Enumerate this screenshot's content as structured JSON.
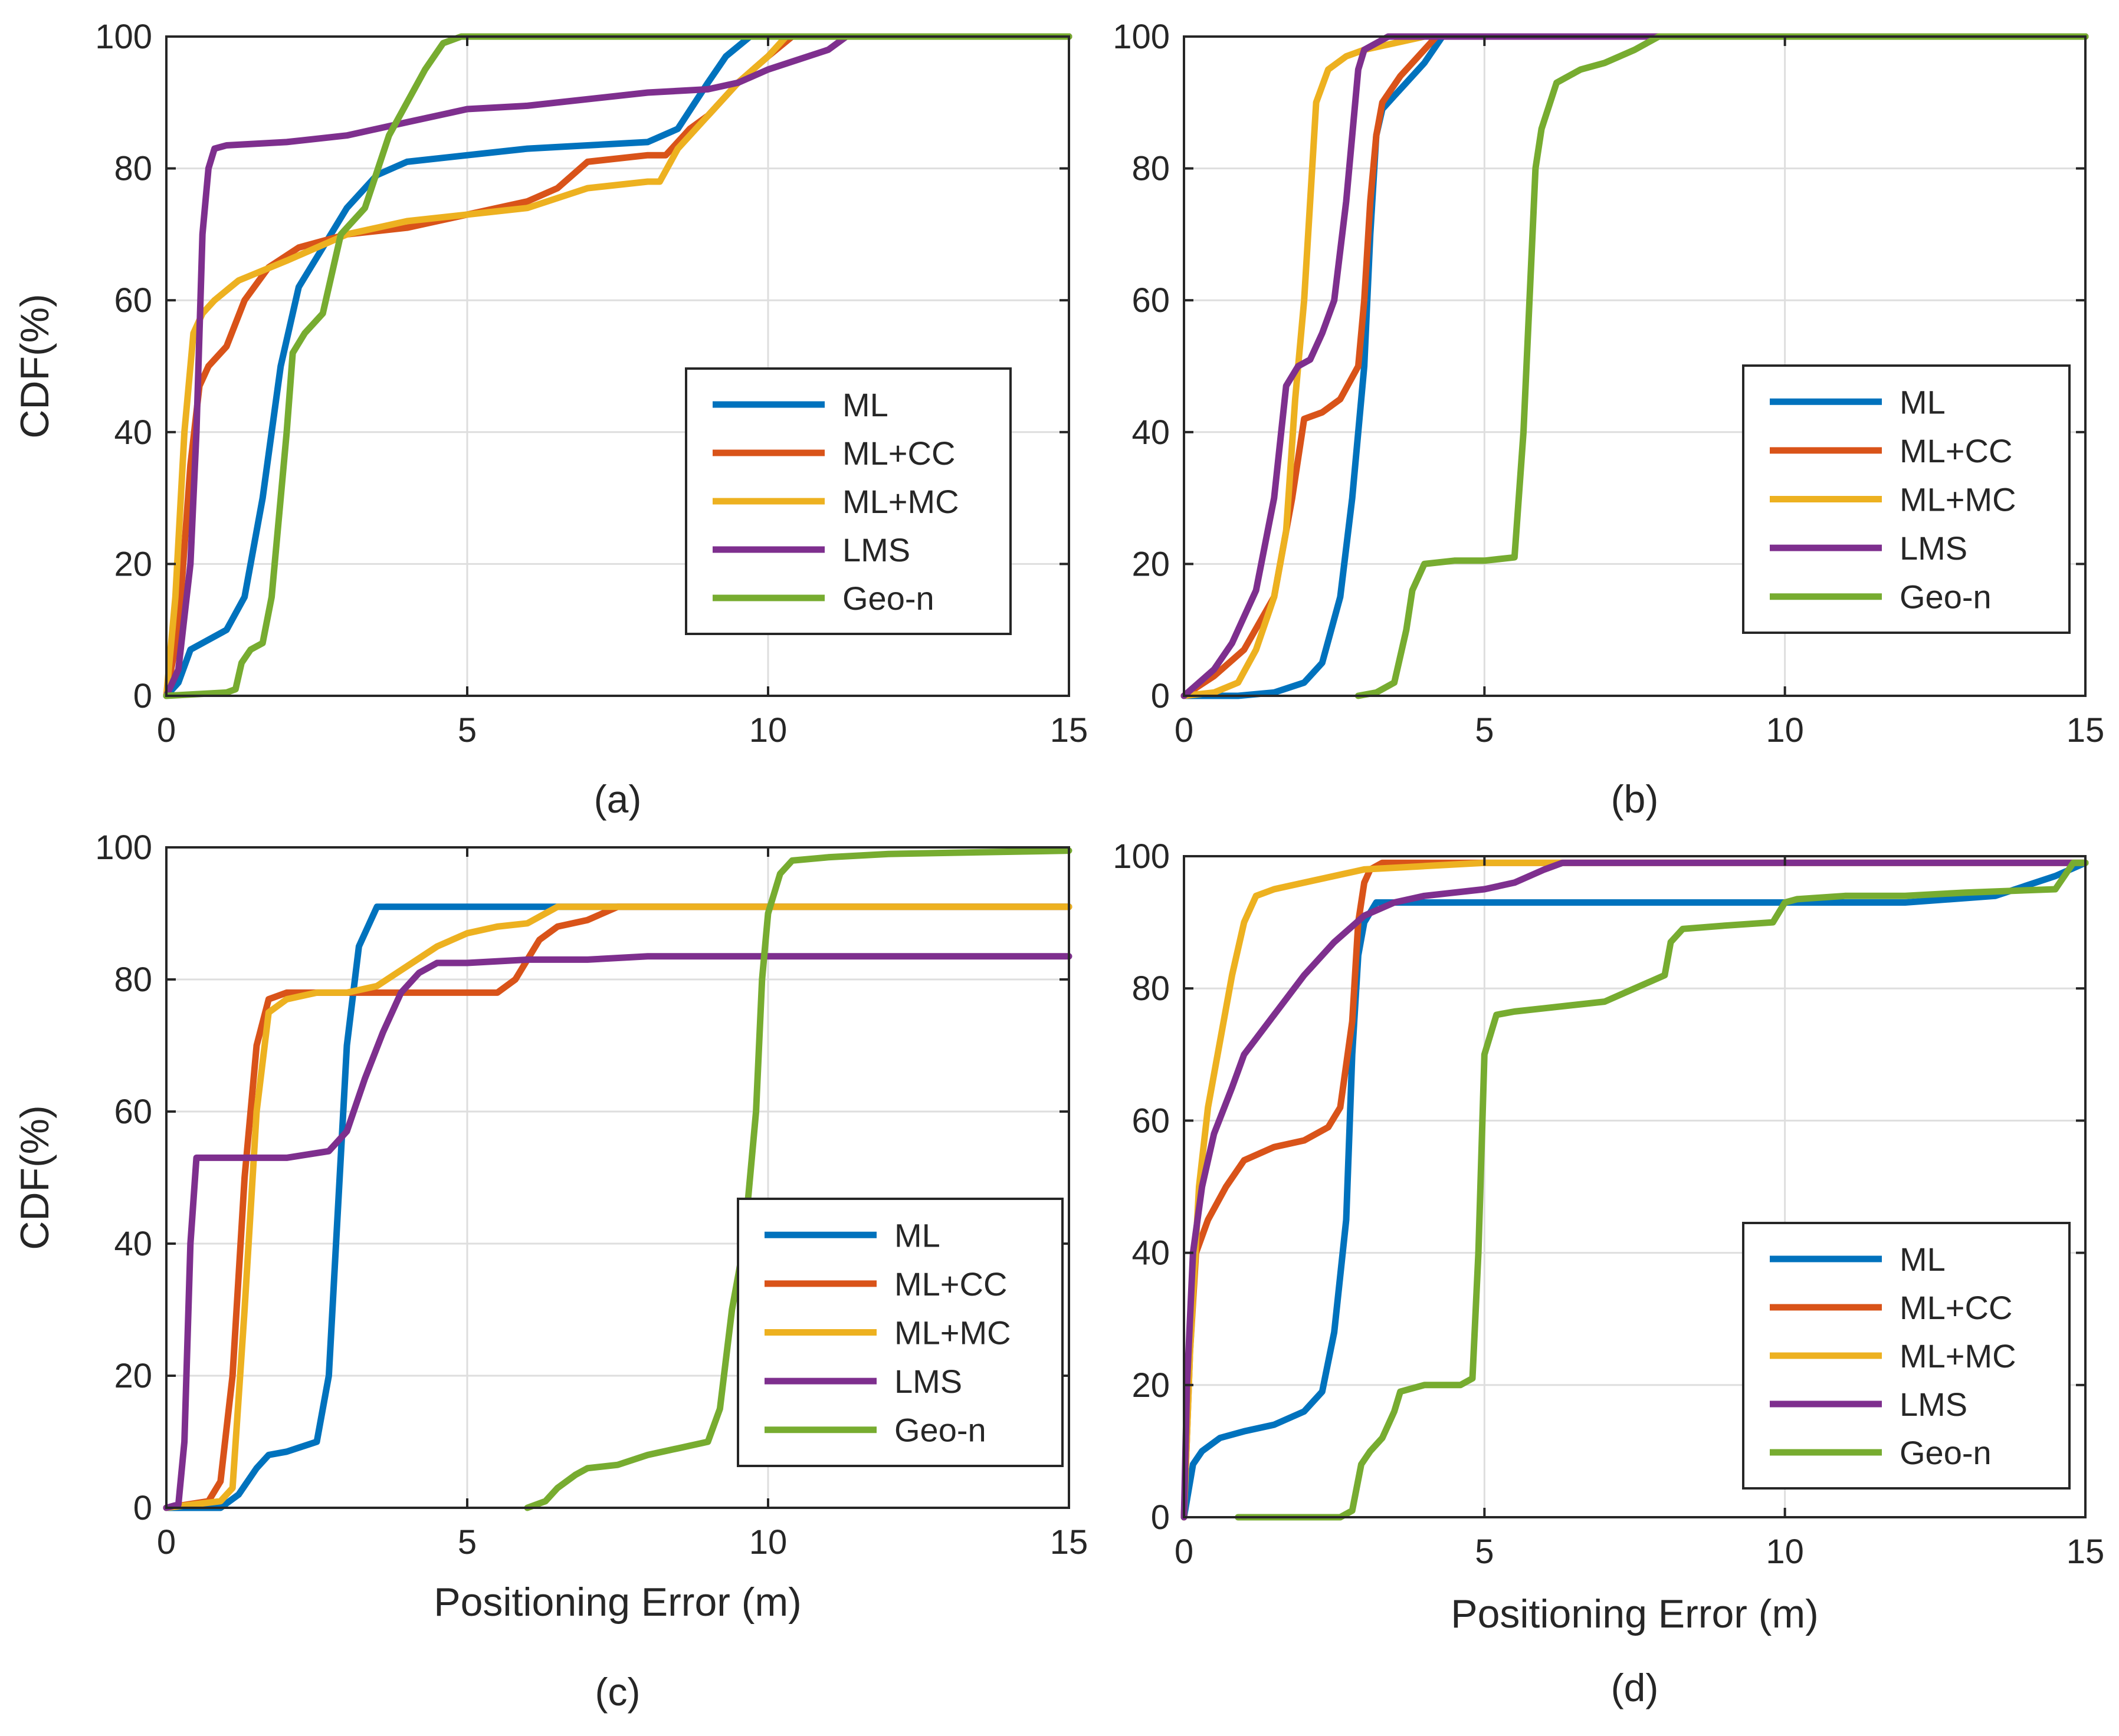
{
  "colors": {
    "ML": "#0072BD",
    "ML+CC": "#D95319",
    "ML+MC": "#EDB120",
    "LMS": "#7E2F8E",
    "Geo-n": "#77AC30"
  },
  "chart_data": [
    {
      "type": "line",
      "id": "a",
      "caption": "(a)",
      "xlabel": "",
      "ylabel": "CDF(%)",
      "xlim": [
        0,
        15
      ],
      "ylim": [
        0,
        100
      ],
      "xticks": [
        0,
        5,
        10,
        15
      ],
      "yticks": [
        0,
        20,
        40,
        60,
        80,
        100
      ],
      "grid": true,
      "legend_position": "lower-right",
      "series": [
        {
          "name": "ML",
          "x": [
            0,
            0.2,
            0.4,
            0.6,
            1.0,
            1.3,
            1.6,
            1.9,
            2.2,
            2.6,
            3.0,
            3.5,
            4.0,
            5.0,
            6.0,
            7.0,
            8.0,
            8.5,
            9.0,
            9.3,
            9.7,
            10.0,
            15
          ],
          "y": [
            0,
            2,
            7,
            8,
            10,
            15,
            30,
            50,
            62,
            68,
            74,
            79,
            81,
            82,
            83,
            83.5,
            84,
            86,
            93,
            97,
            100,
            100,
            100
          ]
        },
        {
          "name": "ML+CC",
          "x": [
            0,
            0.2,
            0.4,
            0.55,
            0.7,
            1.0,
            1.3,
            1.7,
            2.2,
            3.0,
            4.0,
            5.0,
            6.0,
            6.5,
            7.0,
            8.0,
            8.3,
            8.7,
            9.0,
            9.5,
            10.0,
            10.4,
            15
          ],
          "y": [
            0,
            10,
            35,
            47,
            50,
            53,
            60,
            65,
            68,
            70,
            71,
            73,
            75,
            77,
            81,
            82,
            82,
            86,
            88,
            93,
            97,
            100,
            100
          ]
        },
        {
          "name": "ML+MC",
          "x": [
            0,
            0.15,
            0.3,
            0.45,
            0.6,
            0.8,
            1.2,
            2.0,
            3.0,
            4.0,
            5.0,
            6.0,
            7.0,
            8.0,
            8.2,
            8.5,
            9.0,
            9.5,
            10.0,
            10.3,
            15
          ],
          "y": [
            0,
            15,
            40,
            55,
            58,
            60,
            63,
            66,
            70,
            72,
            73,
            74,
            77,
            78,
            78,
            83,
            88,
            93,
            97,
            100,
            100
          ]
        },
        {
          "name": "LMS",
          "x": [
            0,
            0.2,
            0.4,
            0.5,
            0.6,
            0.7,
            0.8,
            1.0,
            2.0,
            3.0,
            3.5,
            4.0,
            5.0,
            6.0,
            7.0,
            8.0,
            9.0,
            9.5,
            10.0,
            10.5,
            11.0,
            11.3,
            15
          ],
          "y": [
            0,
            4,
            20,
            40,
            70,
            80,
            83,
            83.5,
            84,
            85,
            86,
            87,
            89,
            89.5,
            90.5,
            91.5,
            92,
            93,
            95,
            96.5,
            98,
            100,
            100
          ]
        },
        {
          "name": "Geo-n",
          "x": [
            0,
            1.0,
            1.15,
            1.25,
            1.4,
            1.6,
            1.75,
            1.85,
            2.0,
            2.1,
            2.3,
            2.6,
            2.9,
            3.3,
            3.7,
            4.0,
            4.3,
            4.6,
            4.9,
            15
          ],
          "y": [
            0,
            0.5,
            1,
            5,
            7,
            8,
            15,
            25,
            40,
            52,
            55,
            58,
            70,
            74,
            85,
            90,
            95,
            99,
            100,
            100
          ]
        }
      ]
    },
    {
      "type": "line",
      "id": "b",
      "caption": "(b)",
      "xlabel": "",
      "ylabel": "",
      "xlim": [
        0,
        15
      ],
      "ylim": [
        0,
        100
      ],
      "xticks": [
        0,
        5,
        10,
        15
      ],
      "yticks": [
        0,
        20,
        40,
        60,
        80,
        100
      ],
      "grid": true,
      "legend_position": "lower-right",
      "series": [
        {
          "name": "ML",
          "x": [
            0,
            0.9,
            1.5,
            2.0,
            2.3,
            2.6,
            2.8,
            3.0,
            3.1,
            3.2,
            3.3,
            3.5,
            3.7,
            4.0,
            4.3,
            15
          ],
          "y": [
            0,
            0,
            0.5,
            2,
            5,
            15,
            30,
            50,
            70,
            85,
            89,
            91,
            93,
            96,
            100,
            100
          ]
        },
        {
          "name": "ML+CC",
          "x": [
            0,
            0.5,
            1.0,
            1.5,
            1.8,
            2.0,
            2.3,
            2.6,
            2.9,
            3.0,
            3.1,
            3.2,
            3.3,
            3.6,
            3.9,
            4.2,
            15
          ],
          "y": [
            0,
            3,
            7,
            15,
            30,
            42,
            43,
            45,
            50,
            60,
            75,
            85,
            90,
            94,
            97,
            100,
            100
          ]
        },
        {
          "name": "ML+MC",
          "x": [
            0,
            0.5,
            0.9,
            1.2,
            1.5,
            1.7,
            1.85,
            2.0,
            2.1,
            2.2,
            2.4,
            2.7,
            3.0,
            3.5,
            4.0,
            15
          ],
          "y": [
            0,
            0.5,
            2,
            7,
            15,
            25,
            45,
            60,
            75,
            90,
            95,
            97,
            98,
            99,
            100,
            100
          ]
        },
        {
          "name": "LMS",
          "x": [
            0,
            0.5,
            0.8,
            1.2,
            1.5,
            1.7,
            1.9,
            2.1,
            2.3,
            2.5,
            2.7,
            2.9,
            3.0,
            3.2,
            3.4,
            15
          ],
          "y": [
            0,
            4,
            8,
            16,
            30,
            47,
            50,
            51,
            55,
            60,
            75,
            95,
            98,
            99,
            100,
            100
          ]
        },
        {
          "name": "Geo-n",
          "x": [
            2.9,
            3.2,
            3.5,
            3.7,
            3.8,
            4.0,
            4.5,
            5.0,
            5.5,
            5.65,
            5.75,
            5.85,
            5.95,
            6.2,
            6.6,
            7.0,
            7.5,
            7.9,
            15
          ],
          "y": [
            0,
            0.5,
            2,
            10,
            16,
            20,
            20.5,
            20.5,
            21,
            40,
            60,
            80,
            86,
            93,
            95,
            96,
            98,
            100,
            100
          ]
        }
      ]
    },
    {
      "type": "line",
      "id": "c",
      "caption": "(c)",
      "xlabel": "Positioning Error (m)",
      "ylabel": "CDF(%)",
      "xlim": [
        0,
        15
      ],
      "ylim": [
        0,
        100
      ],
      "xticks": [
        0,
        5,
        10,
        15
      ],
      "yticks": [
        0,
        20,
        40,
        60,
        80,
        100
      ],
      "grid": true,
      "legend_position": "lower-right",
      "series": [
        {
          "name": "ML",
          "x": [
            0,
            0.9,
            1.2,
            1.5,
            1.7,
            2.0,
            2.5,
            2.7,
            2.85,
            3.0,
            3.2,
            3.5,
            4.0,
            5.0,
            15
          ],
          "y": [
            0,
            0,
            2,
            6,
            8,
            8.5,
            10,
            20,
            45,
            70,
            85,
            91,
            91,
            91,
            91
          ]
        },
        {
          "name": "ML+CC",
          "x": [
            0,
            0.7,
            0.9,
            1.1,
            1.3,
            1.5,
            1.7,
            2.0,
            2.5,
            3.0,
            4.0,
            5.0,
            5.5,
            5.8,
            6.2,
            6.5,
            7.0,
            7.5,
            8.0,
            15
          ],
          "y": [
            0,
            1,
            4,
            20,
            50,
            70,
            77,
            78,
            78,
            78,
            78,
            78,
            78,
            80,
            86,
            88,
            89,
            91,
            91,
            91
          ]
        },
        {
          "name": "ML+MC",
          "x": [
            0,
            0.9,
            1.1,
            1.3,
            1.5,
            1.7,
            2.0,
            2.5,
            3.0,
            3.5,
            4.0,
            4.5,
            5.0,
            5.5,
            6.0,
            6.3,
            6.5,
            7.0,
            8.0,
            15
          ],
          "y": [
            0,
            1,
            3,
            30,
            60,
            75,
            77,
            78,
            78,
            79,
            82,
            85,
            87,
            88,
            88.5,
            90,
            91,
            91,
            91,
            91
          ]
        },
        {
          "name": "LMS",
          "x": [
            0,
            0.2,
            0.3,
            0.4,
            0.5,
            0.7,
            1.0,
            2.0,
            2.7,
            3.0,
            3.3,
            3.6,
            3.9,
            4.2,
            4.5,
            5.0,
            6.0,
            7.0,
            8.0,
            9.0,
            10.0,
            15
          ],
          "y": [
            0,
            0.5,
            10,
            40,
            53,
            53,
            53,
            53,
            54,
            57,
            65,
            72,
            78,
            81,
            82.5,
            82.5,
            83,
            83,
            83.5,
            83.5,
            83.5,
            83.5
          ]
        },
        {
          "name": "Geo-n",
          "x": [
            6.0,
            6.3,
            6.5,
            6.8,
            7.0,
            7.5,
            8.0,
            8.5,
            9.0,
            9.2,
            9.4,
            9.6,
            9.8,
            9.9,
            10.0,
            10.2,
            10.4,
            11.0,
            12.0,
            15
          ],
          "y": [
            0,
            1,
            3,
            5,
            6,
            6.5,
            8,
            9,
            10,
            15,
            30,
            40,
            60,
            80,
            90,
            96,
            98,
            98.5,
            99,
            99.5
          ]
        }
      ]
    },
    {
      "type": "line",
      "id": "d",
      "caption": "(d)",
      "xlabel": "Positioning Error (m)",
      "ylabel": "",
      "xlim": [
        0,
        15
      ],
      "ylim": [
        0,
        100
      ],
      "xticks": [
        0,
        5,
        10,
        15
      ],
      "yticks": [
        0,
        20,
        40,
        60,
        80,
        100
      ],
      "grid": true,
      "legend_position": "lower-right",
      "series": [
        {
          "name": "ML",
          "x": [
            0,
            0.15,
            0.3,
            0.6,
            1.0,
            1.5,
            2.0,
            2.3,
            2.5,
            2.7,
            2.8,
            2.9,
            3.0,
            3.2,
            3.5,
            5.0,
            10.0,
            12.0,
            13.5,
            14.5,
            15
          ],
          "y": [
            0,
            8,
            10,
            12,
            13,
            14,
            16,
            19,
            28,
            45,
            70,
            85,
            90,
            93,
            93,
            93,
            93,
            93,
            94,
            97,
            99
          ]
        },
        {
          "name": "ML+CC",
          "x": [
            0,
            0.1,
            0.2,
            0.4,
            0.7,
            1.0,
            1.5,
            2.0,
            2.4,
            2.6,
            2.8,
            2.9,
            3.0,
            3.1,
            3.3,
            15
          ],
          "y": [
            0,
            25,
            40,
            45,
            50,
            54,
            56,
            57,
            59,
            62,
            75,
            90,
            96,
            98,
            99,
            99
          ]
        },
        {
          "name": "ML+MC",
          "x": [
            0,
            0.1,
            0.25,
            0.4,
            0.6,
            0.8,
            1.0,
            1.2,
            1.5,
            2.0,
            3.0,
            4.0,
            5.0,
            5.5,
            15
          ],
          "y": [
            0,
            25,
            50,
            62,
            72,
            82,
            90,
            94,
            95,
            96,
            98,
            98.5,
            99,
            99,
            99
          ]
        },
        {
          "name": "LMS",
          "x": [
            0,
            0.05,
            0.15,
            0.3,
            0.5,
            0.8,
            1.0,
            1.5,
            2.0,
            2.5,
            3.0,
            3.5,
            4.0,
            5.0,
            5.5,
            6.0,
            6.3,
            15
          ],
          "y": [
            0,
            20,
            40,
            50,
            58,
            65,
            70,
            76,
            82,
            87,
            91,
            93,
            94,
            95,
            96,
            98,
            99,
            99
          ]
        },
        {
          "name": "Geo-n",
          "x": [
            0.9,
            2.0,
            2.6,
            2.8,
            2.95,
            3.1,
            3.3,
            3.5,
            3.6,
            4.0,
            4.6,
            4.8,
            4.9,
            5.0,
            5.2,
            5.5,
            6.0,
            7.0,
            7.5,
            8.0,
            8.1,
            8.3,
            9.0,
            9.8,
            10.0,
            10.2,
            11.0,
            12.0,
            13.0,
            14.5,
            14.8,
            15
          ],
          "y": [
            0,
            0,
            0,
            1,
            8,
            10,
            12,
            16,
            19,
            20,
            20,
            21,
            40,
            70,
            76,
            76.5,
            77,
            78,
            80,
            82,
            87,
            89,
            89.5,
            90,
            93,
            93.5,
            94,
            94,
            94.5,
            95,
            99,
            99
          ]
        }
      ]
    }
  ]
}
